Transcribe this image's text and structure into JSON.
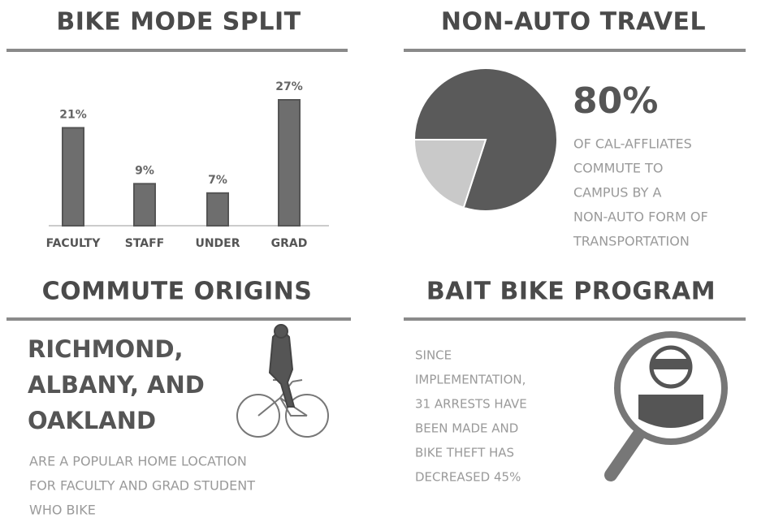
{
  "chart_data": [
    {
      "type": "bar",
      "title": "BIKE MODE SPLIT",
      "categories": [
        "FACULTY",
        "STAFF",
        "UNDER",
        "GRAD"
      ],
      "values": [
        21,
        9,
        7,
        27
      ],
      "value_labels": [
        "21%",
        "9%",
        "7%",
        "27%"
      ],
      "color": "#6e6e6e"
    },
    {
      "type": "pie",
      "title": "NON-AUTO TRAVEL",
      "values": [
        80,
        20
      ],
      "value_labels": [
        "80%",
        null
      ],
      "colors": [
        "#5a5a5a",
        "#c9c9c9"
      ],
      "caption": [
        "OF CAL-AFFLIATES",
        "COMMUTE TO",
        "CAMPUS BY A",
        "NON-AUTO FORM OF",
        "TRANSPORTATION"
      ]
    }
  ],
  "commute_origins": {
    "title": "COMMUTE ORIGINS",
    "places": [
      "RICHMOND,",
      "ALBANY, AND",
      "OAKLAND"
    ],
    "caption": [
      "ARE A POPULAR HOME LOCATION",
      "FOR FACULTY AND GRAD STUDENT",
      "WHO BIKE"
    ]
  },
  "bait_bike_program": {
    "title": "BAIT BIKE PROGRAM",
    "text": [
      "SINCE",
      "IMPLEMENTATION,",
      "31 ARRESTS HAVE",
      "BEEN MADE AND",
      "BIKE THEFT HAS",
      "DECREASED 45%"
    ]
  }
}
